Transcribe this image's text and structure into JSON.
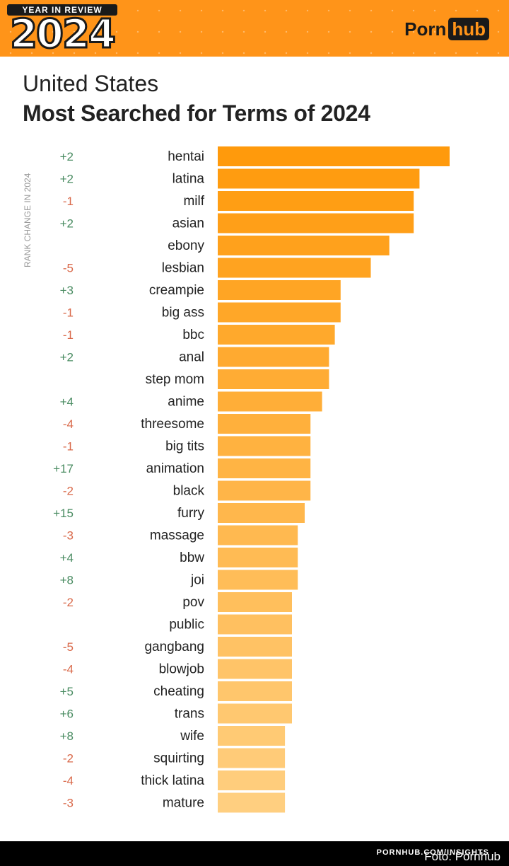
{
  "header": {
    "badge_top": "YEAR IN REVIEW",
    "badge_year": "2024",
    "logo_part1": "Porn",
    "logo_part2": "hub",
    "accent_color": "#ff9419"
  },
  "country": "United States",
  "title": "Most Searched for Terms of 2024",
  "vertical_label": "RANK CHANGE IN 2024",
  "footer": {
    "url": "PORNHUB.COM/INSIGHTS",
    "credit": "Foto: Pornhub"
  },
  "colors": {
    "positive_change": "#4a8c62",
    "negative_change": "#d9694a",
    "bar_top": "#ff9a0c",
    "bar_bottom": "#ffcf80"
  },
  "chart_data": {
    "type": "bar",
    "orientation": "horizontal",
    "categories": [
      "hentai",
      "latina",
      "milf",
      "asian",
      "ebony",
      "lesbian",
      "creampie",
      "big ass",
      "bbc",
      "anal",
      "step mom",
      "anime",
      "threesome",
      "big tits",
      "animation",
      "black",
      "furry",
      "massage",
      "bbw",
      "joi",
      "pov",
      "public",
      "gangbang",
      "blowjob",
      "cheating",
      "trans",
      "wife",
      "squirting",
      "thick latina",
      "mature"
    ],
    "values": [
      100,
      87,
      84.5,
      84.5,
      74,
      66,
      53,
      53,
      50.5,
      48,
      48,
      45,
      40,
      40,
      40,
      40,
      37.5,
      34.5,
      34.5,
      34.5,
      32,
      32,
      32,
      32,
      32,
      32,
      29,
      29,
      29,
      29
    ],
    "rank_change": [
      "+2",
      "+2",
      "-1",
      "+2",
      "",
      "-5",
      "+3",
      "-1",
      "-1",
      "+2",
      "",
      "+4",
      "-4",
      "-1",
      "+17",
      "-2",
      "+15",
      "-3",
      "+4",
      "+8",
      "-2",
      "",
      "-5",
      "-4",
      "+5",
      "+6",
      "+8",
      "-2",
      "-4",
      "-3"
    ],
    "xlim": [
      0,
      100
    ],
    "grid": false,
    "legend": "none"
  }
}
